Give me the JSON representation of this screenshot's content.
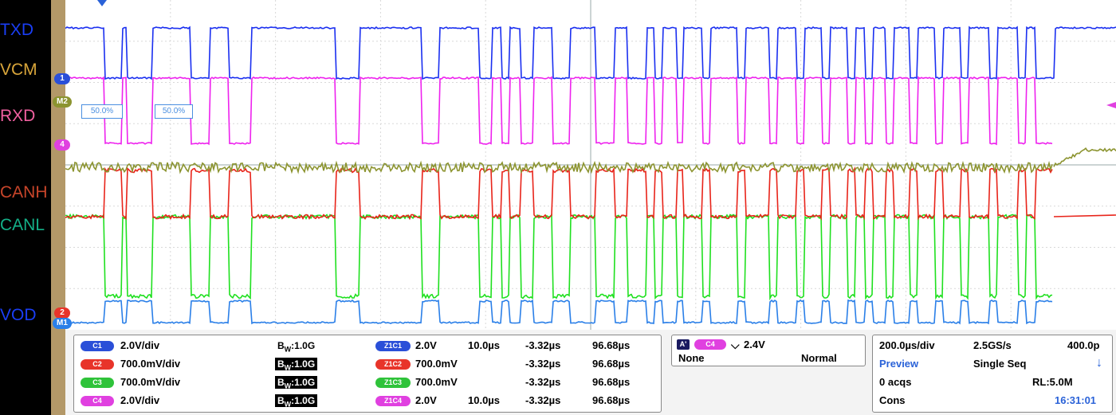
{
  "signal_labels": [
    {
      "text": "TXD",
      "color": "#1a3ef5"
    },
    {
      "text": "VCM",
      "color": "#d8a53a"
    },
    {
      "text": "RXD",
      "color": "#f060a0"
    },
    {
      "text": "CANH",
      "color": "#c8452a"
    },
    {
      "text": "CANL",
      "color": "#14b088"
    },
    {
      "text": "VOD",
      "color": "#1a3ef5"
    }
  ],
  "markers": {
    "ch1": "1",
    "m2": "M2",
    "ch4": "4",
    "ch2": "2",
    "m1": "M1"
  },
  "cursors": {
    "left": "50.0%",
    "right": "50.0%"
  },
  "channels": [
    {
      "tag": "C1",
      "scale": "2.0V/div",
      "bw": "1.0G",
      "bw_prefix": "B",
      "bw_sub": "W",
      "zoom_tag": "Z1C1",
      "zoom_scale": "2.0V",
      "zoom_time": "10.0µs",
      "pos": "-3.32µs",
      "end": "96.68µs",
      "color": "#2a4fd8"
    },
    {
      "tag": "C2",
      "scale": "700.0mV/div",
      "bw": "1.0G",
      "bw_prefix": "B",
      "bw_sub": "W",
      "zoom_tag": "Z1C2",
      "zoom_scale": "700.0mV",
      "zoom_time": "",
      "pos": "-3.32µs",
      "end": "96.68µs",
      "color": "#e8342a"
    },
    {
      "tag": "C3",
      "scale": "700.0mV/div",
      "bw": "1.0G",
      "bw_prefix": "B",
      "bw_sub": "W",
      "zoom_tag": "Z1C3",
      "zoom_scale": "700.0mV",
      "zoom_time": "",
      "pos": "-3.32µs",
      "end": "96.68µs",
      "color": "#2fc33a"
    },
    {
      "tag": "C4",
      "scale": "2.0V/div",
      "bw": "1.0G",
      "bw_prefix": "B",
      "bw_sub": "W",
      "zoom_tag": "Z1C4",
      "zoom_scale": "2.0V",
      "zoom_time": "10.0µs",
      "pos": "-3.32µs",
      "end": "96.68µs",
      "color": "#e040e0"
    }
  ],
  "trigger": {
    "a_label": "A'",
    "source": "C4",
    "edge_glyph": "⌵",
    "level": "2.4V",
    "coupling": "None",
    "mode": "Normal"
  },
  "acquisition": {
    "timebase": "200.0µs/div",
    "sample_rate": "2.5GS/s",
    "point": "400.0p",
    "state": "Preview",
    "run_mode": "Single Seq",
    "acqs": "0 acqs",
    "record_length": "RL:5.0M",
    "cons": "Cons",
    "time": "16:31:01",
    "stop_icon": "down-arrow-icon"
  },
  "colors": {
    "txd": "#1a2ff0",
    "rxd": "#ee22ee",
    "canh": "#e8241a",
    "canl": "#1fe01f",
    "vcm": "#8c9430",
    "vod": "#2a7fe8"
  }
}
